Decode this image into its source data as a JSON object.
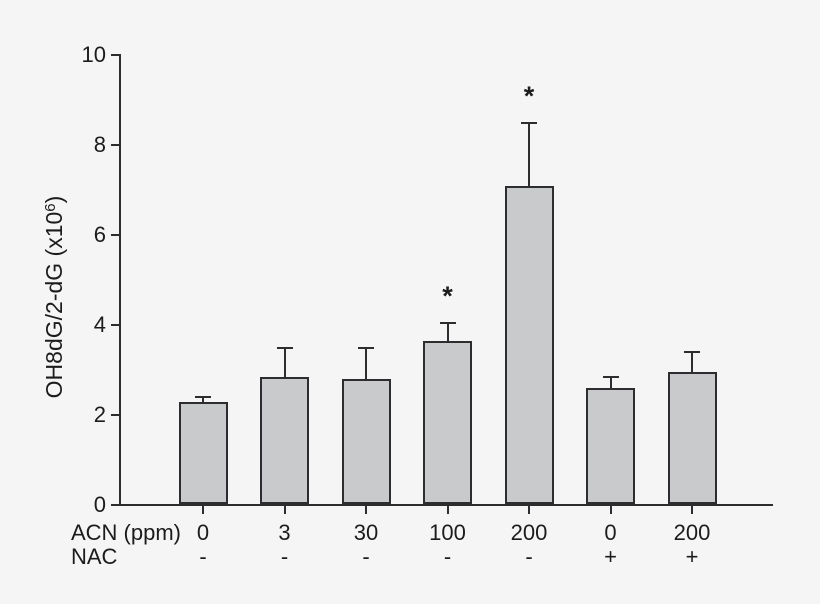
{
  "figure": {
    "background_color": "#f5f5f6",
    "bar_fill_color": "#c8cacc",
    "bar_border_color": "#2d2d2f",
    "text_color": "#1c1c1c"
  },
  "chart_data": {
    "type": "bar",
    "title": "",
    "ylabel": "OH8dG/2-dG (x10^6)",
    "ylabel_pre": "OH8dG/2-dG (x10",
    "ylabel_sup": "6",
    "ylabel_post": ")",
    "ylim": [
      0,
      10
    ],
    "yticks": [
      0,
      2,
      4,
      6,
      8,
      10
    ],
    "grid": false,
    "legend_position": "none",
    "significance_marker": "*",
    "row_labels": {
      "acn": "ACN (ppm)",
      "nac": "NAC"
    },
    "categories_acn": [
      "0",
      "3",
      "30",
      "100",
      "200",
      "0",
      "200"
    ],
    "categories_nac": [
      "-",
      "-",
      "-",
      "-",
      "-",
      "+",
      "+"
    ],
    "bars": [
      {
        "acn": "0",
        "nac": "-",
        "value": 2.3,
        "error": 0.1,
        "significant": false
      },
      {
        "acn": "3",
        "nac": "-",
        "value": 2.85,
        "error": 0.65,
        "significant": false
      },
      {
        "acn": "30",
        "nac": "-",
        "value": 2.8,
        "error": 0.7,
        "significant": false
      },
      {
        "acn": "100",
        "nac": "-",
        "value": 3.65,
        "error": 0.4,
        "significant": true
      },
      {
        "acn": "200",
        "nac": "-",
        "value": 7.1,
        "error": 1.4,
        "significant": true
      },
      {
        "acn": "0",
        "nac": "+",
        "value": 2.6,
        "error": 0.25,
        "significant": false
      },
      {
        "acn": "200",
        "nac": "+",
        "value": 2.95,
        "error": 0.45,
        "significant": false
      }
    ]
  }
}
